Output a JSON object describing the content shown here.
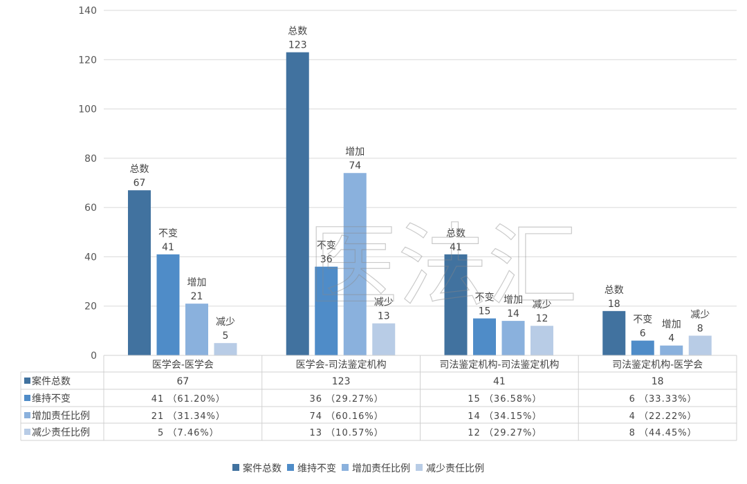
{
  "chart_data": {
    "type": "bar",
    "categories": [
      "医学会-医学会",
      "医学会-司法鉴定机构",
      "司法鉴定机构-司法鉴定机构",
      "司法鉴定机构-医学会"
    ],
    "series": [
      {
        "name": "案件总数",
        "short_label": "总数",
        "color": "#41729f",
        "values": [
          67,
          123,
          41,
          18
        ],
        "table": [
          "67",
          "123",
          "41",
          "18"
        ]
      },
      {
        "name": "维持不变",
        "short_label": "不变",
        "color": "#4f8cc8",
        "values": [
          41,
          36,
          15,
          6
        ],
        "table": [
          "41 （61.20%）",
          "36 （29.27%）",
          "15 （36.58%）",
          "6 （33.33%）"
        ]
      },
      {
        "name": "增加责任比例",
        "short_label": "增加",
        "color": "#8ab1dd",
        "values": [
          21,
          74,
          14,
          4
        ],
        "table": [
          "21 （31.34%）",
          "74 （60.16%）",
          "14 （34.15%）",
          "4 （22.22%）"
        ]
      },
      {
        "name": "减少责任比例",
        "short_label": "减少",
        "color": "#b8cce6",
        "values": [
          5,
          13,
          12,
          8
        ],
        "table": [
          "5 （7.46%）",
          "13 （10.57%）",
          "12 （29.27%）",
          "8 （44.45%）"
        ]
      }
    ],
    "yticks": [
      0,
      20,
      40,
      60,
      80,
      100,
      120,
      140
    ],
    "ylim": [
      0,
      140
    ],
    "grid": true,
    "legend": "bottom",
    "data_table": true
  },
  "watermark": "医法汇"
}
